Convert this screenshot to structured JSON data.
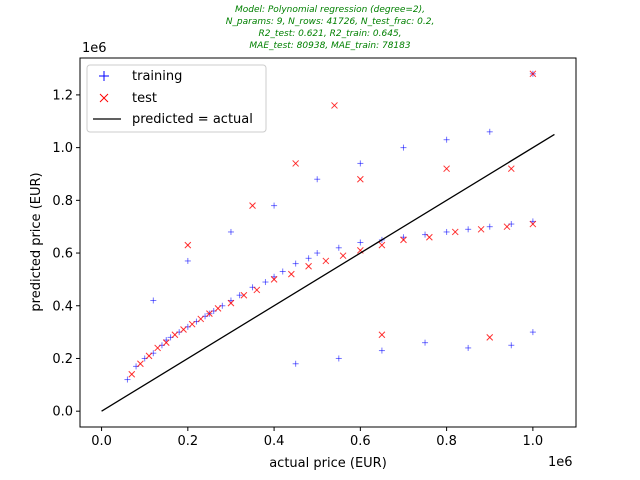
{
  "chart_data": {
    "type": "scatter",
    "title_lines": [
      "Model: Polynomial regression (degree=2),",
      "N_params: 9, N_rows: 41726, N_test_frac: 0.2,",
      "R2_test: 0.621, R2_train: 0.645,",
      "MAE_test: 80938, MAE_train: 78183"
    ],
    "xlabel": "actual price (EUR)",
    "ylabel": "predicted price (EUR)",
    "x_offset_label": "1e6",
    "y_offset_label": "1e6",
    "xlim": [
      -50000,
      1100000
    ],
    "ylim": [
      -60000,
      1340000
    ],
    "x_ticks": [
      0,
      200000,
      400000,
      600000,
      800000,
      1000000
    ],
    "x_tick_labels": [
      "0.0",
      "0.2",
      "0.4",
      "0.6",
      "0.8",
      "1.0"
    ],
    "y_ticks": [
      0,
      200000,
      400000,
      600000,
      800000,
      1000000,
      1200000
    ],
    "y_tick_labels": [
      "0.0",
      "0.2",
      "0.4",
      "0.6",
      "0.8",
      "1.0",
      "1.2"
    ],
    "grid": false,
    "legend_position": "top-left",
    "series": [
      {
        "name": "training",
        "marker": "plus",
        "color": "#0000ff",
        "x": [
          60000,
          80000,
          100000,
          120000,
          140000,
          150000,
          160000,
          180000,
          200000,
          220000,
          240000,
          250000,
          260000,
          280000,
          300000,
          320000,
          350000,
          380000,
          400000,
          420000,
          450000,
          480000,
          500000,
          550000,
          600000,
          650000,
          700000,
          750000,
          800000,
          850000,
          900000,
          950000,
          1000000,
          120000,
          200000,
          300000,
          400000,
          500000,
          600000,
          700000,
          800000,
          900000,
          1000000,
          1000000,
          950000,
          850000,
          750000,
          650000,
          550000,
          450000
        ],
        "y": [
          120000,
          170000,
          200000,
          220000,
          250000,
          270000,
          280000,
          300000,
          320000,
          340000,
          360000,
          370000,
          380000,
          400000,
          420000,
          440000,
          470000,
          490000,
          510000,
          530000,
          560000,
          580000,
          600000,
          620000,
          640000,
          650000,
          660000,
          670000,
          680000,
          690000,
          700000,
          710000,
          720000,
          420000,
          570000,
          680000,
          780000,
          880000,
          940000,
          1000000,
          1030000,
          1060000,
          1280000,
          300000,
          250000,
          240000,
          260000,
          230000,
          200000,
          180000
        ]
      },
      {
        "name": "test",
        "marker": "x",
        "color": "#ff0000",
        "x": [
          70000,
          90000,
          110000,
          130000,
          150000,
          170000,
          190000,
          210000,
          230000,
          250000,
          270000,
          300000,
          330000,
          360000,
          400000,
          440000,
          480000,
          520000,
          560000,
          600000,
          650000,
          700000,
          760000,
          820000,
          880000,
          940000,
          1000000,
          540000,
          200000,
          350000,
          450000,
          600000,
          800000,
          950000,
          1000000,
          650000,
          900000
        ],
        "y": [
          140000,
          180000,
          210000,
          240000,
          260000,
          290000,
          310000,
          330000,
          350000,
          370000,
          390000,
          410000,
          440000,
          460000,
          500000,
          520000,
          550000,
          570000,
          590000,
          610000,
          630000,
          650000,
          660000,
          680000,
          690000,
          700000,
          710000,
          1160000,
          630000,
          780000,
          940000,
          880000,
          920000,
          920000,
          1280000,
          290000,
          280000
        ]
      }
    ],
    "reference_line": {
      "name": "predicted = actual",
      "color": "#000000",
      "x": [
        0,
        1050000
      ],
      "y": [
        0,
        1050000
      ]
    }
  }
}
